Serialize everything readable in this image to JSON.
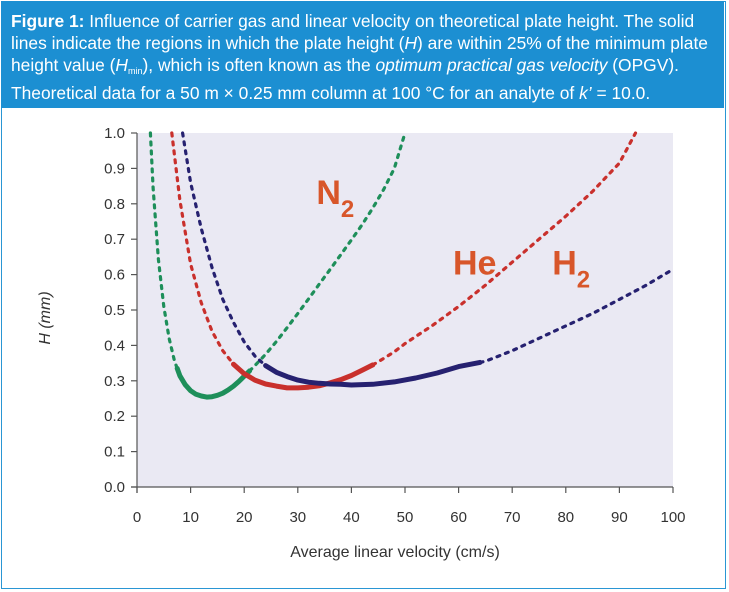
{
  "figure": {
    "label": "Figure 1:",
    "t1": " Influence of carrier gas and linear velocity on theoretical plate height. The solid lines indicate the regions in which the plate height (",
    "h": "H",
    "t2": ") are within 25% of the minimum plate height value (",
    "hmin_h": "H",
    "hmin_sub": "min",
    "t3": "), which is often known as the ",
    "opgv": "optimum practical gas velocity",
    "t4": " (OPGV). Theoretical data for a 50 m × 0.25 mm column at 100 °C for an analyte of ",
    "k": "k’",
    "t5": " = 10.0."
  },
  "colors": {
    "caption_bg": "#1c8fd2",
    "plot_bg": "#eae9f3",
    "N2": "#1e8f5a",
    "He": "#c9302c",
    "H2": "#262170",
    "label_text": "#d8562a"
  },
  "chart_data": {
    "type": "line",
    "title": "",
    "xlabel": "Average linear velocity (cm/s)",
    "ylabel": "H (mm)",
    "xlim": [
      0,
      100
    ],
    "ylim": [
      0,
      1.0
    ],
    "xticks": [
      "0",
      "10",
      "20",
      "30",
      "40",
      "50",
      "60",
      "70",
      "80",
      "90",
      "100"
    ],
    "yticks": [
      "0.0",
      "0.1",
      "0.2",
      "0.3",
      "0.4",
      "0.5",
      "0.6",
      "0.7",
      "0.8",
      "0.9",
      "1.0"
    ],
    "grid": false,
    "series": [
      {
        "name": "N2",
        "label_main": "N",
        "label_sub": "2",
        "label_at": [
          37,
          0.8
        ],
        "color": "#1e8f5a",
        "x": [
          2.5,
          3,
          4,
          5,
          6,
          7,
          8,
          9,
          10,
          11,
          12,
          13,
          14,
          15,
          16,
          17,
          18,
          19,
          20,
          22,
          24,
          26,
          28,
          30,
          32,
          34,
          36,
          38,
          40,
          42,
          44,
          46,
          48,
          50
        ],
        "values": [
          1.0,
          0.845,
          0.643,
          0.51,
          0.419,
          0.356,
          0.314,
          0.289,
          0.272,
          0.262,
          0.257,
          0.254,
          0.255,
          0.259,
          0.265,
          0.274,
          0.285,
          0.298,
          0.313,
          0.343,
          0.375,
          0.411,
          0.45,
          0.49,
          0.531,
          0.573,
          0.614,
          0.656,
          0.698,
          0.741,
          0.788,
          0.84,
          0.9,
          1.0
        ],
        "solid_range": [
          7.5,
          21
        ]
      },
      {
        "name": "He",
        "label_main": "He",
        "label_sub": "",
        "label_at": [
          63,
          0.6
        ],
        "color": "#c9302c",
        "x": [
          6.5,
          8,
          10,
          12,
          14,
          16,
          18,
          20,
          22,
          24,
          26,
          28,
          30,
          32,
          34,
          36,
          38,
          40,
          42,
          44,
          46,
          48,
          50,
          55,
          60,
          65,
          70,
          75,
          80,
          85,
          90,
          93
        ],
        "values": [
          1.0,
          0.81,
          0.63,
          0.52,
          0.44,
          0.385,
          0.347,
          0.32,
          0.302,
          0.291,
          0.285,
          0.28,
          0.28,
          0.282,
          0.286,
          0.294,
          0.303,
          0.315,
          0.33,
          0.345,
          0.363,
          0.382,
          0.405,
          0.455,
          0.51,
          0.57,
          0.635,
          0.7,
          0.765,
          0.835,
          0.915,
          1.0
        ],
        "solid_range": [
          18,
          44
        ]
      },
      {
        "name": "H2",
        "label_main": "H",
        "label_sub": "2",
        "label_at": [
          81,
          0.6
        ],
        "color": "#262170",
        "x": [
          8.5,
          10,
          12,
          14,
          16,
          18,
          20,
          22,
          24,
          26,
          28,
          30,
          32,
          34,
          36,
          38,
          40,
          44,
          48,
          52,
          56,
          60,
          65,
          70,
          75,
          80,
          85,
          90,
          95,
          100
        ],
        "values": [
          1.0,
          0.86,
          0.73,
          0.62,
          0.53,
          0.465,
          0.41,
          0.37,
          0.343,
          0.324,
          0.312,
          0.302,
          0.296,
          0.293,
          0.291,
          0.29,
          0.288,
          0.29,
          0.297,
          0.308,
          0.322,
          0.34,
          0.355,
          0.385,
          0.42,
          0.455,
          0.49,
          0.53,
          0.57,
          0.615
        ],
        "solid_range": [
          24,
          64
        ]
      }
    ]
  }
}
